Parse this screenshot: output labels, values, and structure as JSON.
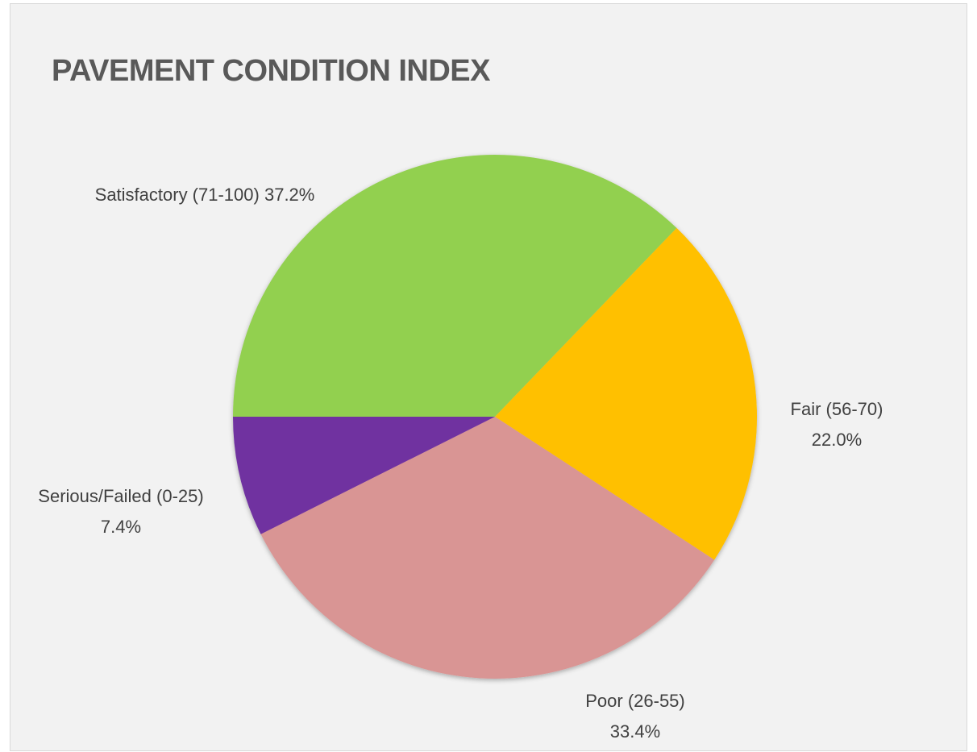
{
  "chart_data": {
    "type": "pie",
    "title": "PAVEMENT CONDITION INDEX",
    "categories": [
      "Satisfactory (71-100)",
      "Fair (56-70)",
      "Poor (26-55)",
      "Serious/Failed (0-25)"
    ],
    "values": [
      37.2,
      22.0,
      33.4,
      7.4
    ],
    "value_labels": [
      "37.2%",
      "22.0%",
      "33.4%",
      "7.4%"
    ],
    "colors": [
      "#92d050",
      "#ffc000",
      "#d99594",
      "#7030a0"
    ]
  }
}
